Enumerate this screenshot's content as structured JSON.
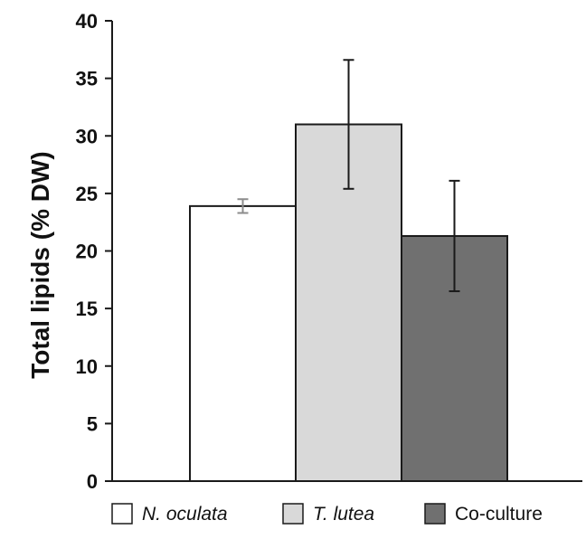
{
  "chart_data": {
    "type": "bar",
    "title": "",
    "xlabel": "",
    "ylabel": "Total lipids (% DW)",
    "ylim": [
      0,
      40
    ],
    "yticks": [
      0,
      5,
      10,
      15,
      20,
      25,
      30,
      35,
      40
    ],
    "ytick_labels": [
      "0",
      "5",
      "10",
      "15",
      "20",
      "25",
      "30",
      "35",
      "40"
    ],
    "grid": false,
    "legend_position": "bottom",
    "series": [
      {
        "name": "N. oculata",
        "italic": true,
        "value": 23.9,
        "error": 0.6,
        "color": "#ffffff",
        "error_color": "#8c8c8c"
      },
      {
        "name": "T. lutea",
        "italic": true,
        "value": 31.0,
        "error": 5.6,
        "color": "#d9d9d9",
        "error_color": "#1a1a1a"
      },
      {
        "name": "Co-culture",
        "italic": false,
        "value": 21.3,
        "error": 4.8,
        "color": "#707070",
        "error_color": "#1a1a1a"
      }
    ],
    "bar_outline_color": "#1a1a1a",
    "axis_color": "#1a1a1a"
  }
}
